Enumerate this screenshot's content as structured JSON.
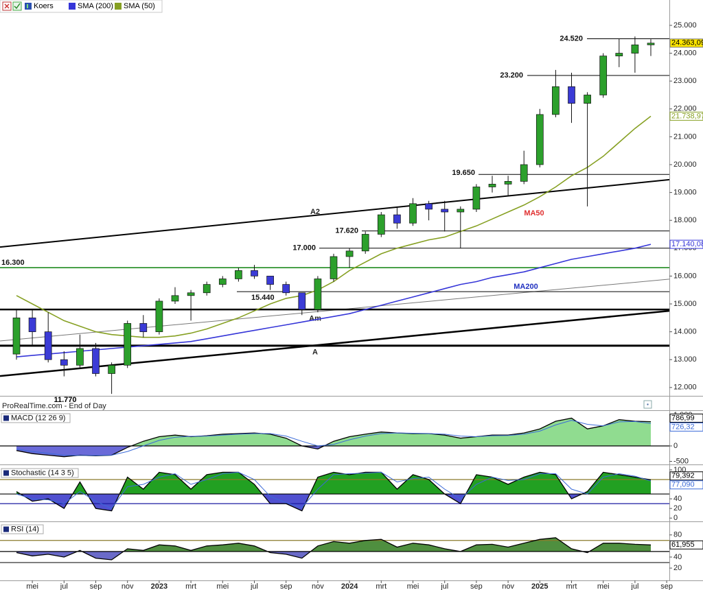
{
  "chart_data": [
    {
      "type": "candlestick",
      "name": "Koers",
      "up_color": "#2ca02c",
      "down_color": "#3b3bd6",
      "categories": [
        null,
        "mei",
        null,
        "jul",
        null,
        "sep",
        null,
        "nov",
        null,
        "2023",
        null,
        "mrt",
        null,
        "mei",
        null,
        "jul",
        null,
        "sep",
        null,
        "nov",
        null,
        "2024",
        null,
        "mrt",
        null,
        "mei",
        null,
        "jul",
        null,
        "sep",
        null,
        "nov",
        null,
        "2025",
        null,
        "mrt",
        null,
        "mei",
        null,
        "jul",
        null,
        "sep"
      ],
      "open": [
        13200,
        14500,
        14000,
        13000,
        12800,
        13400,
        12500,
        12800,
        14300,
        14000,
        15100,
        15300,
        15400,
        15700,
        15900,
        16200,
        16000,
        15700,
        15400,
        14800,
        15900,
        16700,
        16900,
        17500,
        18200,
        17900,
        18600,
        18400,
        18300,
        18400,
        19200,
        19300,
        19400,
        20000,
        21800,
        22800,
        22200,
        22500,
        23900,
        24000,
        24300,
        null
      ],
      "high": [
        14800,
        14800,
        14700,
        13300,
        13900,
        13600,
        12900,
        14400,
        14600,
        15200,
        15600,
        15500,
        15800,
        16000,
        16300,
        16400,
        16000,
        15800,
        15400,
        16000,
        16800,
        17000,
        17600,
        18300,
        18500,
        18800,
        18700,
        18700,
        18500,
        19300,
        19600,
        19600,
        20500,
        22000,
        23400,
        23300,
        22600,
        24000,
        24520,
        24600,
        24500,
        null
      ],
      "low": [
        13000,
        13500,
        12900,
        12400,
        12700,
        12400,
        11770,
        12700,
        13800,
        13900,
        15000,
        14400,
        15300,
        15600,
        15800,
        15900,
        15500,
        15300,
        14600,
        14700,
        15800,
        16300,
        16800,
        17400,
        17700,
        17800,
        18000,
        17600,
        17000,
        18300,
        19000,
        18900,
        19300,
        19900,
        21700,
        21500,
        18500,
        22400,
        23500,
        23300,
        23900,
        null
      ],
      "close": [
        14500,
        14000,
        13000,
        12800,
        13400,
        12500,
        12800,
        14300,
        14000,
        15100,
        15300,
        15400,
        15700,
        15900,
        16200,
        16000,
        15700,
        15400,
        14800,
        15900,
        16700,
        16900,
        17500,
        18200,
        17900,
        18600,
        18400,
        18300,
        18400,
        19200,
        19300,
        19400,
        20000,
        21800,
        22800,
        22200,
        22500,
        23900,
        24000,
        24300,
        24363.09,
        null
      ],
      "value_labels": [
        null,
        null,
        null,
        null,
        null,
        null,
        null,
        null,
        null,
        null,
        null,
        null,
        null,
        null,
        null,
        null,
        null,
        null,
        null,
        null,
        null,
        null,
        null,
        null,
        null,
        null,
        null,
        null,
        null,
        null,
        null,
        null,
        null,
        null,
        null,
        null,
        null,
        null,
        null,
        null,
        "24.363,09",
        null
      ],
      "series": [
        {
          "name": "SMA (200)",
          "color": "#3535d8",
          "values": [
            13100,
            13150,
            13200,
            13250,
            13300,
            13350,
            13400,
            13450,
            13500,
            13550,
            13600,
            13650,
            13750,
            13850,
            13950,
            14050,
            14150,
            14250,
            14350,
            14450,
            14550,
            14650,
            14800,
            14950,
            15100,
            15250,
            15400,
            15550,
            15700,
            15800,
            15950,
            16050,
            16150,
            16300,
            16450,
            16600,
            16700,
            16800,
            16900,
            17000,
            17140.08,
            null
          ],
          "value_labels": [
            null,
            null,
            null,
            null,
            null,
            null,
            null,
            null,
            null,
            null,
            null,
            null,
            null,
            null,
            null,
            null,
            null,
            null,
            null,
            null,
            null,
            null,
            null,
            null,
            null,
            null,
            null,
            null,
            null,
            null,
            null,
            null,
            null,
            null,
            null,
            null,
            null,
            null,
            null,
            null,
            "17.140,08",
            null
          ]
        },
        {
          "name": "SMA (50)",
          "color": "#86a022",
          "values": [
            15300,
            15000,
            14700,
            14400,
            14200,
            14000,
            13900,
            13850,
            13800,
            13800,
            13850,
            13950,
            14100,
            14300,
            14500,
            14750,
            15000,
            15200,
            15300,
            15500,
            15800,
            16200,
            16500,
            16800,
            17000,
            17150,
            17300,
            17400,
            17600,
            17800,
            18050,
            18300,
            18550,
            18850,
            19200,
            19600,
            19900,
            20300,
            20800,
            21300,
            21738.97,
            null
          ],
          "value_labels": [
            null,
            null,
            null,
            null,
            null,
            null,
            null,
            null,
            null,
            null,
            null,
            null,
            null,
            null,
            null,
            null,
            null,
            null,
            null,
            null,
            null,
            null,
            null,
            null,
            null,
            null,
            null,
            null,
            null,
            null,
            null,
            null,
            null,
            null,
            null,
            null,
            null,
            null,
            null,
            null,
            "21.738,97",
            null
          ]
        }
      ],
      "levels": [
        {
          "value": 24520,
          "label": "24.520",
          "color": "#000000"
        },
        {
          "value": 23200,
          "label": "23.200",
          "color": "#000000"
        },
        {
          "value": 19650,
          "label": "19.650",
          "color": "#000000"
        },
        {
          "value": 17620,
          "label": "17.620",
          "color": "#000000"
        },
        {
          "value": 17000,
          "label": "17.000",
          "color": "#000000"
        },
        {
          "value": 16300,
          "label": "16.300",
          "color": "#1e8a1e"
        },
        {
          "value": 15440,
          "label": "15.440",
          "color": "#000000"
        },
        {
          "value": 14800,
          "color": "#000000"
        },
        {
          "value": 13500,
          "color": "#000000"
        }
      ],
      "trendlines": [
        {
          "from": 17040,
          "to": 19460,
          "label": "A2",
          "color": "#000000"
        },
        {
          "from": 13670,
          "to": 15890,
          "label": "Am",
          "color": "#777777"
        },
        {
          "from": 12410,
          "to": 14750,
          "label": "A",
          "color": "#000000"
        }
      ],
      "annotations": [
        {
          "text": "11.770",
          "color": "#000000"
        },
        {
          "text": "MA50",
          "color": "#e03030"
        },
        {
          "text": "MA200",
          "color": "#2030c0"
        }
      ],
      "source": "ProRealTime.com - End of Day",
      "ylim": [
        11700,
        25910
      ],
      "yticks": [
        {
          "value": 12000,
          "label": "12.000"
        },
        {
          "value": 13000,
          "label": "13.000"
        },
        {
          "value": 14000,
          "label": "14.000"
        },
        {
          "value": 15000,
          "label": "15.000"
        },
        {
          "value": 16000,
          "label": "16.000"
        },
        {
          "value": 17000,
          "label": "17.000"
        },
        {
          "value": 18000,
          "label": "18.000"
        },
        {
          "value": 19000,
          "label": "19.000"
        },
        {
          "value": 20000,
          "label": "20.000"
        },
        {
          "value": 21000,
          "label": "21.000"
        },
        {
          "value": 22000,
          "label": "22.000"
        },
        {
          "value": 23000,
          "label": "23.000"
        },
        {
          "value": 24000,
          "label": "24.000"
        },
        {
          "value": 25000,
          "label": "25.000"
        }
      ]
    },
    {
      "type": "area",
      "title": "MACD (12 26 9)",
      "baseline": 0,
      "fill_colors": [
        "#90dc90",
        "#6a6ad8"
      ],
      "series": [
        {
          "color": "#000000",
          "values": [
            -150,
            -250,
            -300,
            -350,
            -300,
            -320,
            -300,
            -50,
            150,
            300,
            350,
            300,
            330,
            380,
            400,
            420,
            380,
            250,
            0,
            -100,
            150,
            300,
            380,
            450,
            420,
            400,
            400,
            350,
            250,
            300,
            350,
            350,
            420,
            550,
            800,
            900,
            550,
            650,
            850,
            800,
            786.99,
            null
          ],
          "value_labels": [
            null,
            null,
            null,
            null,
            null,
            null,
            null,
            null,
            null,
            null,
            null,
            null,
            null,
            null,
            null,
            null,
            null,
            null,
            null,
            null,
            null,
            null,
            null,
            null,
            null,
            null,
            null,
            null,
            null,
            null,
            null,
            null,
            null,
            null,
            null,
            null,
            null,
            null,
            null,
            null,
            "786,99",
            null
          ]
        },
        {
          "color": "#3a6ad8",
          "values": [
            -100,
            -180,
            -240,
            -300,
            -310,
            -310,
            -300,
            -180,
            0,
            180,
            280,
            310,
            320,
            350,
            380,
            400,
            400,
            320,
            150,
            0,
            50,
            200,
            320,
            400,
            420,
            410,
            400,
            380,
            320,
            300,
            330,
            340,
            380,
            480,
            680,
            830,
            700,
            650,
            780,
            790,
            726.32,
            null
          ],
          "value_labels": [
            null,
            null,
            null,
            null,
            null,
            null,
            null,
            null,
            null,
            null,
            null,
            null,
            null,
            null,
            null,
            null,
            null,
            null,
            null,
            null,
            null,
            null,
            null,
            null,
            null,
            null,
            null,
            null,
            null,
            null,
            null,
            null,
            null,
            null,
            null,
            null,
            null,
            null,
            null,
            null,
            "726,32",
            null
          ]
        }
      ],
      "hlines": [
        {
          "value": 0,
          "color": "#000000"
        }
      ],
      "ylim": [
        -556,
        1111
      ],
      "yticks": [
        {
          "value": 1000,
          "label": "1.000"
        },
        0,
        -500
      ]
    },
    {
      "type": "area",
      "title": "Stochastic (14 3 5)",
      "baseline": 50,
      "fill_colors": [
        "#22a022",
        "#5050d0"
      ],
      "series": [
        {
          "color": "#000000",
          "values": [
            55,
            35,
            40,
            20,
            75,
            20,
            15,
            85,
            60,
            95,
            90,
            60,
            90,
            95,
            95,
            70,
            30,
            30,
            15,
            85,
            95,
            90,
            95,
            95,
            60,
            90,
            80,
            50,
            30,
            90,
            85,
            70,
            85,
            95,
            90,
            40,
            55,
            95,
            90,
            85,
            79.392,
            null
          ],
          "value_labels": [
            null,
            null,
            null,
            null,
            null,
            null,
            null,
            null,
            null,
            null,
            null,
            null,
            null,
            null,
            null,
            null,
            null,
            null,
            null,
            null,
            null,
            null,
            null,
            null,
            null,
            null,
            null,
            null,
            null,
            null,
            null,
            null,
            null,
            null,
            null,
            null,
            null,
            null,
            null,
            null,
            "79,392",
            null
          ]
        },
        {
          "color": "#3a6ad8",
          "values": [
            50,
            40,
            38,
            30,
            55,
            35,
            20,
            65,
            70,
            85,
            92,
            70,
            80,
            92,
            95,
            80,
            45,
            32,
            22,
            60,
            90,
            92,
            93,
            95,
            75,
            82,
            85,
            60,
            40,
            70,
            85,
            78,
            80,
            92,
            92,
            60,
            50,
            85,
            92,
            87,
            77.09,
            null
          ],
          "value_labels": [
            null,
            null,
            null,
            null,
            null,
            null,
            null,
            null,
            null,
            null,
            null,
            null,
            null,
            null,
            null,
            null,
            null,
            null,
            null,
            null,
            null,
            null,
            null,
            null,
            null,
            null,
            null,
            null,
            null,
            null,
            null,
            null,
            null,
            null,
            null,
            null,
            null,
            null,
            null,
            null,
            "77,090",
            null
          ]
        }
      ],
      "hlines": [
        {
          "value": 80,
          "color": "#8a7a2a"
        },
        {
          "value": 50,
          "color": "#000000"
        },
        {
          "value": 30,
          "color": "#1a1aa0"
        }
      ],
      "ylim": [
        -4,
        107
      ],
      "yticks": [
        0,
        20,
        40,
        100
      ]
    },
    {
      "type": "area",
      "title": "RSI (14)",
      "baseline": 50,
      "fill_colors": [
        "#4f8f3f",
        "#6a6ac8"
      ],
      "series": [
        {
          "color": "#000000",
          "values": [
            48,
            42,
            45,
            40,
            52,
            38,
            35,
            55,
            52,
            62,
            60,
            52,
            60,
            62,
            65,
            60,
            48,
            45,
            38,
            60,
            68,
            65,
            70,
            72,
            58,
            65,
            62,
            55,
            50,
            62,
            63,
            58,
            65,
            72,
            75,
            55,
            48,
            65,
            65,
            63,
            61.955,
            null
          ],
          "value_labels": [
            null,
            null,
            null,
            null,
            null,
            null,
            null,
            null,
            null,
            null,
            null,
            null,
            null,
            null,
            null,
            null,
            null,
            null,
            null,
            null,
            null,
            null,
            null,
            null,
            null,
            null,
            null,
            null,
            null,
            null,
            null,
            null,
            null,
            null,
            null,
            null,
            null,
            null,
            null,
            null,
            "61,955",
            null
          ]
        }
      ],
      "hlines": [
        {
          "value": 70,
          "color": "#8a7a2a"
        },
        {
          "value": 50,
          "color": "#000000"
        },
        {
          "value": 30,
          "color": "#333333"
        }
      ],
      "ylim": [
        -1,
        102
      ],
      "yticks": [
        20,
        40,
        80
      ]
    }
  ]
}
